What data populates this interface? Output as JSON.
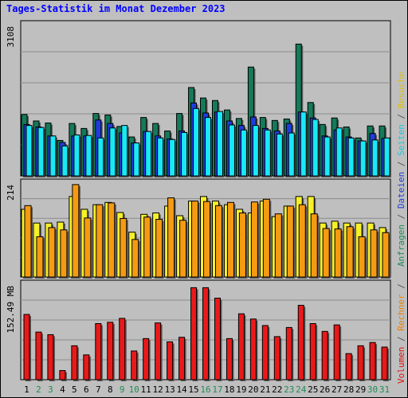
{
  "title": "Tages-Statistik im Monat Dezember 2023",
  "colors": {
    "background": "#bfbfbf",
    "grid": "#8c8c8c",
    "title": "#0000ff",
    "anfragen": "#157a5a",
    "dateien": "#1f3ddc",
    "seiten": "#19e8f5",
    "besuche": "#f6f02a",
    "rechner": "#f59a13",
    "volumen": "#ea1919",
    "weekend_label": "#228b55",
    "weekday_label": "#000000"
  },
  "side_legend": {
    "top_items": [
      {
        "text": "Anfragen",
        "color": "#228b55"
      },
      {
        "text": " / ",
        "color": "#555555"
      },
      {
        "text": "Dateien",
        "color": "#1f3ddc"
      },
      {
        "text": " / ",
        "color": "#555555"
      },
      {
        "text": "Seiten",
        "color": "#19c8e0"
      },
      {
        "text": " / ",
        "color": "#555555"
      },
      {
        "text": "Besuche",
        "color": "#e0c000"
      }
    ],
    "bottom_items": [
      {
        "text": "Volumen",
        "color": "#e01010"
      },
      {
        "text": " / ",
        "color": "#555555"
      },
      {
        "text": "Rechner",
        "color": "#f08000"
      },
      {
        "text": " / ",
        "color": "#555555"
      }
    ]
  },
  "chart_data": [
    {
      "type": "bar",
      "panel": "top",
      "ylabel": "3108",
      "ylim": [
        0,
        3108
      ],
      "categories": [
        "1",
        "2",
        "3",
        "4",
        "5",
        "6",
        "7",
        "8",
        "9",
        "10",
        "11",
        "12",
        "13",
        "14",
        "15",
        "16",
        "17",
        "18",
        "19",
        "20",
        "21",
        "22",
        "23",
        "24",
        "25",
        "26",
        "27",
        "28",
        "29",
        "30",
        "31"
      ],
      "weekend_days": [
        "2",
        "3",
        "9",
        "10",
        "16",
        "17",
        "23",
        "24",
        "30",
        "31"
      ],
      "series": [
        {
          "name": "Anfragen",
          "values": [
            1230,
            1100,
            1060,
            710,
            1050,
            950,
            1250,
            1220,
            990,
            780,
            1170,
            1050,
            900,
            1250,
            1770,
            1560,
            1510,
            1320,
            1150,
            2180,
            1170,
            1110,
            1140,
            2640,
            1470,
            1030,
            1160,
            980,
            760,
            1000,
            1000
          ]
        },
        {
          "name": "Dateien",
          "values": [
            1030,
            980,
            800,
            670,
            800,
            800,
            1120,
            1050,
            860,
            660,
            890,
            800,
            740,
            900,
            1460,
            1260,
            1280,
            1100,
            1010,
            1180,
            950,
            900,
            1050,
            1280,
            1160,
            800,
            920,
            780,
            700,
            850,
            750
          ]
        },
        {
          "name": "Seiten",
          "values": [
            1010,
            970,
            800,
            600,
            820,
            810,
            760,
            960,
            1010,
            660,
            890,
            760,
            730,
            870,
            1350,
            1170,
            1290,
            1020,
            920,
            1010,
            920,
            840,
            860,
            1280,
            1130,
            780,
            960,
            760,
            700,
            720,
            760
          ]
        }
      ]
    },
    {
      "type": "bar",
      "panel": "middle",
      "ylabel": "214",
      "ylim": [
        0,
        214
      ],
      "categories": [
        "1",
        "2",
        "3",
        "4",
        "5",
        "6",
        "7",
        "8",
        "9",
        "10",
        "11",
        "12",
        "13",
        "14",
        "15",
        "16",
        "17",
        "18",
        "19",
        "20",
        "21",
        "22",
        "23",
        "24",
        "25",
        "26",
        "27",
        "28",
        "29",
        "30",
        "31"
      ],
      "series": [
        {
          "name": "Besuche",
          "values": [
            148,
            118,
            118,
            120,
            176,
            148,
            158,
            163,
            141,
            98,
            137,
            140,
            155,
            134,
            166,
            176,
            166,
            158,
            148,
            140,
            166,
            132,
            155,
            176,
            176,
            118,
            122,
            118,
            118,
            118,
            108
          ]
        },
        {
          "name": "Rechner",
          "values": [
            156,
            88,
            108,
            103,
            202,
            129,
            158,
            162,
            128,
            82,
            131,
            126,
            173,
            124,
            166,
            165,
            156,
            163,
            140,
            164,
            170,
            138,
            155,
            158,
            138,
            106,
            105,
            110,
            88,
            103,
            97
          ]
        }
      ]
    },
    {
      "type": "bar",
      "panel": "bottom",
      "ylabel": "152.49 MB",
      "ylim": [
        0,
        152.49
      ],
      "categories": [
        "1",
        "2",
        "3",
        "4",
        "5",
        "6",
        "7",
        "8",
        "9",
        "10",
        "11",
        "12",
        "13",
        "14",
        "15",
        "16",
        "17",
        "18",
        "19",
        "20",
        "21",
        "22",
        "23",
        "24",
        "25",
        "26",
        "27",
        "28",
        "29",
        "30",
        "31"
      ],
      "series": [
        {
          "name": "Volumen",
          "values": [
            100,
            73,
            69,
            14,
            52,
            38,
            86,
            88,
            94,
            44,
            63,
            87,
            58,
            65,
            141,
            141,
            125,
            63,
            101,
            93,
            83,
            66,
            80,
            114,
            86,
            74,
            84,
            40,
            52,
            57,
            50
          ]
        }
      ]
    }
  ]
}
